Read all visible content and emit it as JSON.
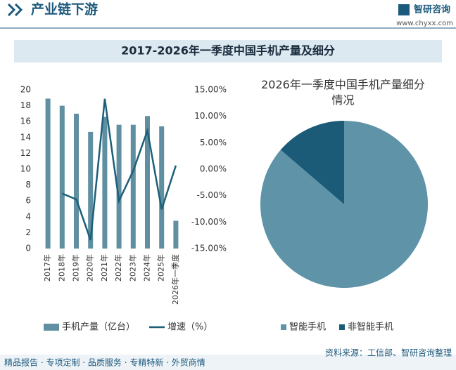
{
  "header": {
    "title": "产业链下游",
    "logo": "智研咨询",
    "url": "www.chyxx.com"
  },
  "banner": "2017-2026年一季度中国手机产量及细分",
  "chart_data": [
    {
      "type": "bar",
      "categories": [
        "2017年",
        "2018年",
        "2019年",
        "2020年",
        "2021年",
        "2022年",
        "2023年",
        "2024年",
        "2025年",
        "2026年一季度"
      ],
      "series": [
        {
          "name": "手机产量（亿台）",
          "color": "#5f8fa0",
          "type": "bar",
          "values": [
            18.9,
            18.0,
            17.0,
            14.7,
            16.6,
            15.6,
            15.6,
            16.7,
            15.4,
            3.5
          ]
        },
        {
          "name": "增速（%）",
          "color": "#1d5f79",
          "type": "line",
          "axis": "y2",
          "values": [
            null,
            -4.6,
            -5.7,
            -13.4,
            13.3,
            -6.0,
            -0.3,
            7.3,
            -7.6,
            0.7
          ]
        }
      ],
      "ylim": [
        0,
        20
      ],
      "yticks": [
        0,
        2,
        4,
        6,
        8,
        10,
        12,
        14,
        16,
        18,
        20
      ],
      "y2lim": [
        -15,
        15
      ],
      "y2ticks": [
        {
          "value": 15,
          "label": "15.00%"
        },
        {
          "value": 10,
          "label": "10.00%"
        },
        {
          "value": 5,
          "label": "5.00%"
        },
        {
          "value": 0,
          "label": "0.00%"
        },
        {
          "value": -5,
          "label": "-5.00%"
        },
        {
          "value": -10,
          "label": "-10.00%"
        },
        {
          "value": -15,
          "label": "-15.00%"
        }
      ],
      "legend": "bottom"
    },
    {
      "type": "pie",
      "title": "2026年一季度中国手机产量细分情况",
      "categories": [
        "智能手机",
        "非智能手机"
      ],
      "values": [
        86.3,
        13.7
      ],
      "colors": [
        "#5e93a8",
        "#1b5b78"
      ],
      "legend": "bottom"
    }
  ],
  "footer": {
    "services": "精品报告 · 专项定制 · 品质服务 · 专精特新 · 外贸商情",
    "source": "资料来源：工信部、智研咨询整理"
  }
}
